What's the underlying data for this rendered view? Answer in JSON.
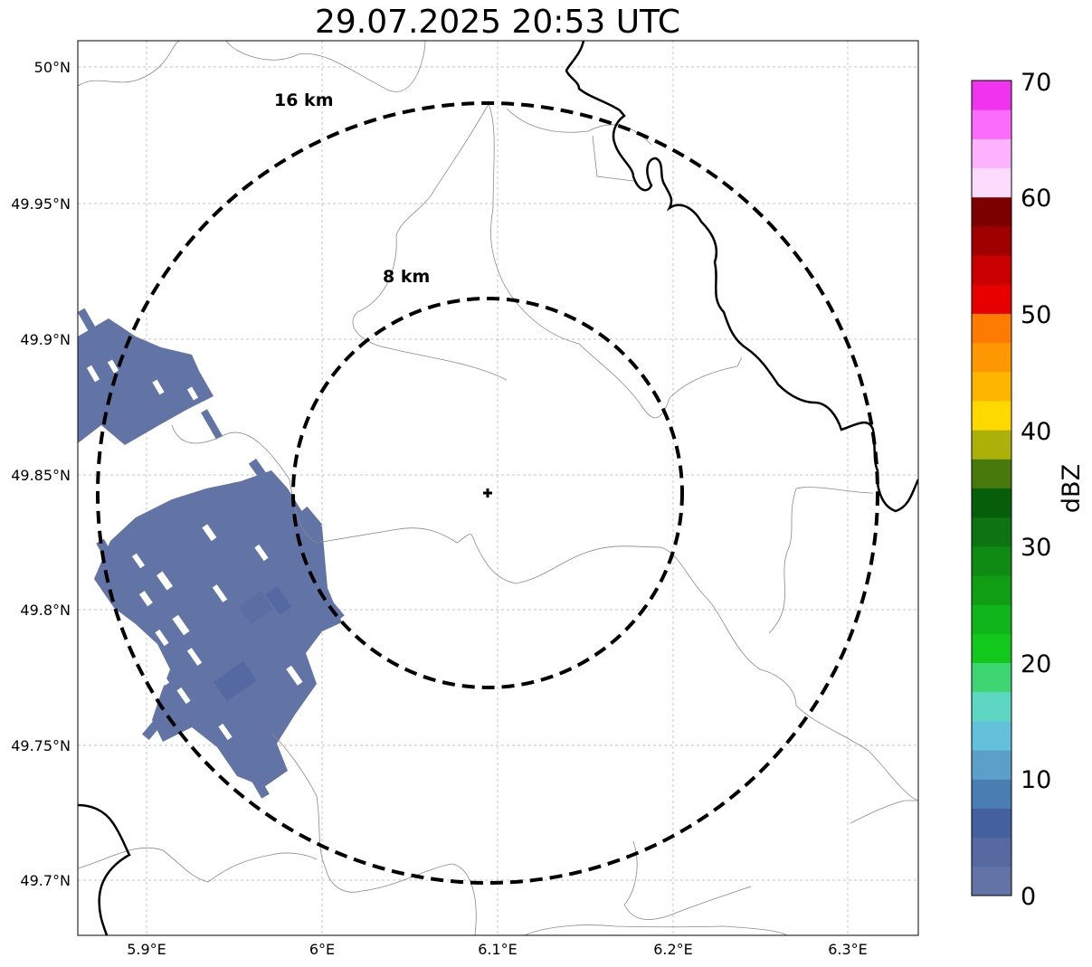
{
  "title": "29.07.2025 20:53 UTC",
  "rings": [
    {
      "label": "16 km",
      "radius_km": 16
    },
    {
      "label": "8 km",
      "radius_km": 8
    }
  ],
  "lat_ticks": [
    {
      "label": "50°N",
      "value": 50.0
    },
    {
      "label": "49.95°N",
      "value": 49.95
    },
    {
      "label": "49.9°N",
      "value": 49.9
    },
    {
      "label": "49.85°N",
      "value": 49.85
    },
    {
      "label": "49.8°N",
      "value": 49.8
    },
    {
      "label": "49.75°N",
      "value": 49.75
    },
    {
      "label": "49.7°N",
      "value": 49.7
    }
  ],
  "lon_ticks": [
    {
      "label": "5.9°E",
      "value": 5.9
    },
    {
      "label": "6°E",
      "value": 6.0
    },
    {
      "label": "6.1°E",
      "value": 6.1
    },
    {
      "label": "6.2°E",
      "value": 6.2
    },
    {
      "label": "6.3°E",
      "value": 6.3
    }
  ],
  "colorbar": {
    "label": "dBZ",
    "ticks": [
      "0",
      "10",
      "20",
      "30",
      "40",
      "50",
      "60",
      "70"
    ],
    "colors": [
      "#6373a6",
      "#5669a0",
      "#44609f",
      "#4a7db2",
      "#5aa0c8",
      "#63c1dc",
      "#5ed6c4",
      "#3dd672",
      "#12c81b",
      "#10b51b",
      "#0f9e14",
      "#0f8a12",
      "#0c7410",
      "#065e0b",
      "#47790c",
      "#acb10a",
      "#ffd800",
      "#fdb500",
      "#fe9700",
      "#ff7a00",
      "#e60000",
      "#c80000",
      "#a00000",
      "#7d0000",
      "#fcdcfc",
      "#fcb2fc",
      "#fc6cfc",
      "#ef33ef"
    ]
  },
  "radar_site": {
    "lat": 49.843,
    "lon": 6.094
  },
  "precip_color": "#6273a5"
}
